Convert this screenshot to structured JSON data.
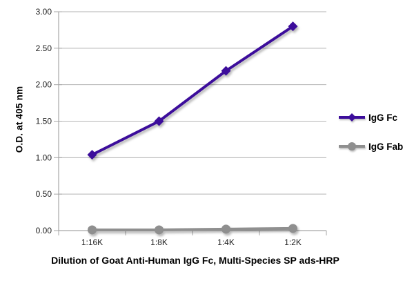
{
  "chart_data": {
    "type": "line",
    "title": "",
    "categories": [
      "1:16K",
      "1:8K",
      "1:4K",
      "1:2K"
    ],
    "series": [
      {
        "name": "IgG Fc",
        "marker": "diamond",
        "color": "#3C0D9B",
        "values": [
          1.04,
          1.5,
          2.19,
          2.8
        ]
      },
      {
        "name": "IgG Fab",
        "marker": "circle",
        "color": "#8F8F8F",
        "values": [
          0.01,
          0.01,
          0.02,
          0.03
        ]
      }
    ],
    "xlabel": "Dilution of Goat Anti-Human IgG Fc, Multi-Species SP ads-HRP",
    "ylabel": "O.D. at 405 nm",
    "ylim": [
      0,
      3
    ],
    "ytick_step": 0.5,
    "ytick_labels": [
      "0.00",
      "0.50",
      "1.00",
      "1.50",
      "2.00",
      "2.50",
      "3.00"
    ],
    "grid": "horizontal",
    "legend_position": "right",
    "colors": {
      "gridline": "#B3B3B3",
      "axis": "#A6A6A6",
      "tick_text": "#1C1C1C",
      "title_text": "#000000",
      "background": "#FFFFFF"
    }
  }
}
